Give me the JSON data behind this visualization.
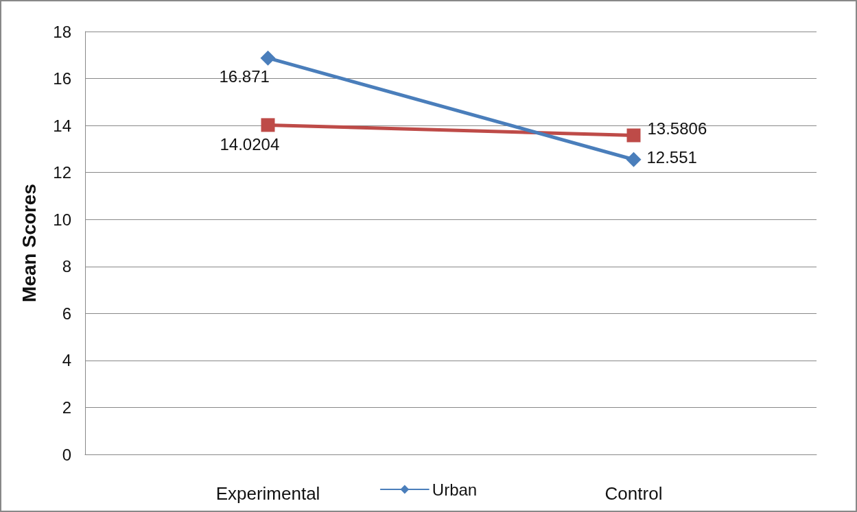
{
  "chart_data": {
    "type": "line",
    "ylabel": "Mean Scores",
    "categories": [
      "Experimental",
      "Control"
    ],
    "series": [
      {
        "name": "Urban",
        "color": "#4a7ebb",
        "marker": "diamond",
        "values": [
          16.871,
          12.551
        ]
      },
      {
        "color": "#be4b48",
        "marker": "square",
        "values": [
          14.0204,
          13.5806
        ]
      }
    ],
    "ylim": [
      0,
      18
    ],
    "yticks": [
      0,
      2,
      4,
      6,
      8,
      10,
      12,
      14,
      16,
      18
    ],
    "grid": "y",
    "legend": "bottom",
    "data_labels": true
  }
}
